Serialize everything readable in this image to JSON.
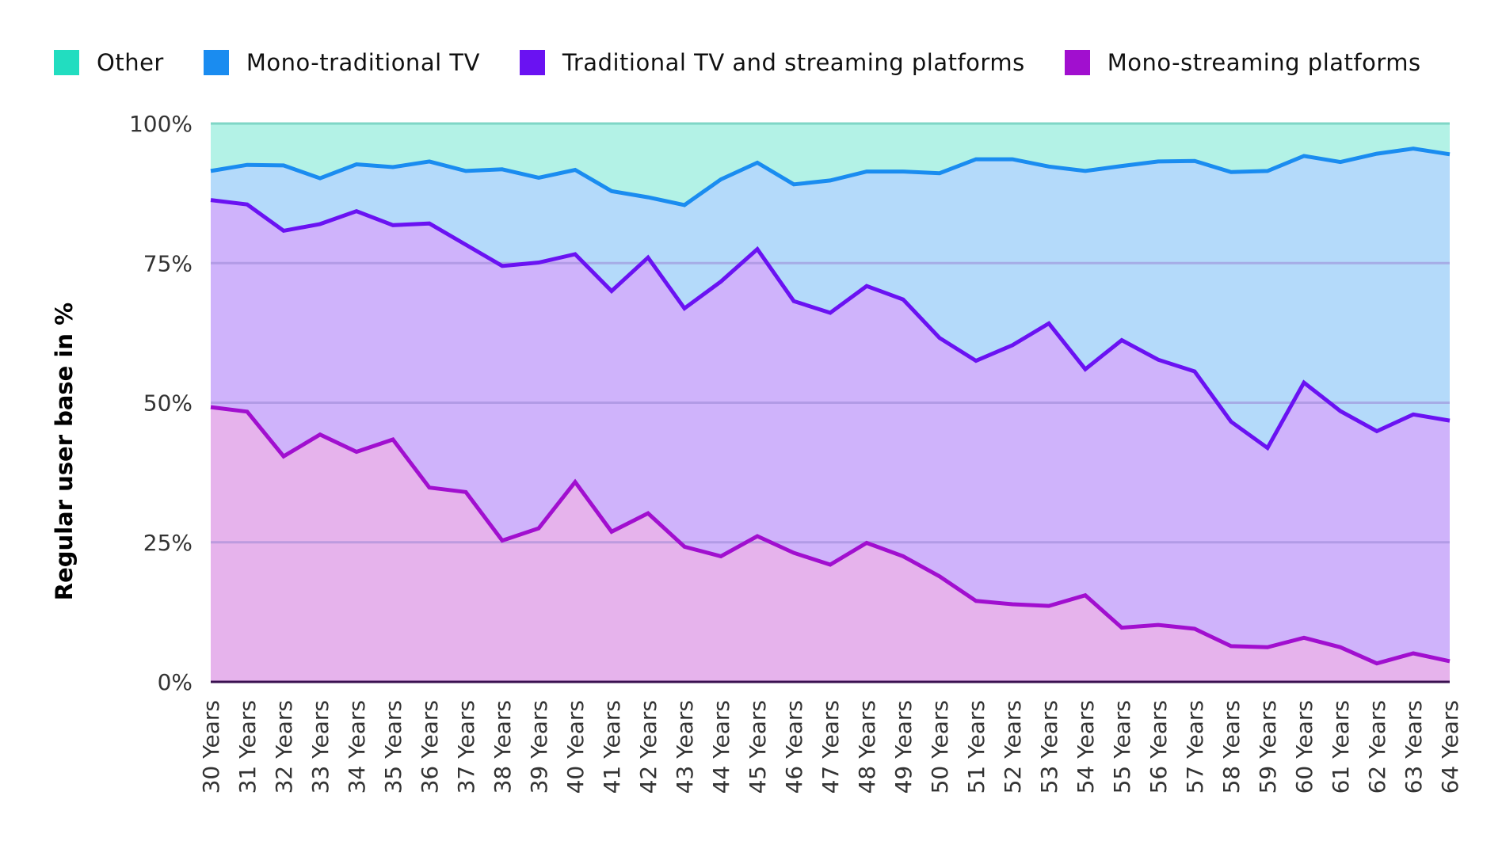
{
  "chart_data": {
    "type": "area",
    "stacked": true,
    "title": "",
    "xlabel": "",
    "ylabel": "Regular user base in %",
    "ylim": [
      0,
      100
    ],
    "yticks": [
      "0%",
      "25%",
      "50%",
      "75%",
      "100%"
    ],
    "ytick_values": [
      0,
      25,
      50,
      75,
      100
    ],
    "grid": true,
    "legend_position": "top",
    "categories": [
      "30 Years",
      "31 Years",
      "32 Years",
      "33 Years",
      "34 Years",
      "35 Years",
      "36 Years",
      "37 Years",
      "38 Years",
      "39 Years",
      "40 Years",
      "41 Years",
      "42 Years",
      "43 Years",
      "44 Years",
      "45 Years",
      "46 Years",
      "47 Years",
      "48 Years",
      "49 Years",
      "50 Years",
      "51 Years",
      "52 Years",
      "53 Years",
      "54 Years",
      "55 Years",
      "56 Years",
      "57 Years",
      "58 Years",
      "59 Years",
      "60 Years",
      "61 Years",
      "62 Years",
      "63 Years",
      "64 Years"
    ],
    "series": [
      {
        "name": "Other",
        "color": "#22DDC0",
        "fill": "#B3F2E6",
        "cumulative_top": [
          100,
          100,
          100,
          100,
          100,
          100,
          100,
          100,
          100,
          100,
          100,
          100,
          100,
          100,
          100,
          100,
          100,
          100,
          100,
          100,
          100,
          100,
          100,
          100,
          100,
          100,
          100,
          100,
          100,
          100,
          100,
          100,
          100,
          100,
          100
        ]
      },
      {
        "name": "Mono-traditional TV",
        "color": "#1A8CF0",
        "fill": "#B4DAFA",
        "cumulative_top": [
          91.5,
          92.6,
          92.5,
          90.2,
          92.7,
          92.2,
          93.2,
          91.5,
          91.8,
          90.3,
          91.7,
          87.9,
          86.8,
          85.4,
          90.0,
          93.0,
          89.1,
          89.8,
          91.4,
          91.4,
          91.1,
          93.6,
          93.6,
          92.3,
          91.5,
          92.4,
          93.2,
          93.3,
          91.3,
          91.5,
          94.2,
          93.1,
          94.6,
          95.5,
          94.5
        ]
      },
      {
        "name": "Traditional TV and streaming platforms",
        "color": "#6A12F2",
        "fill": "#CFB3FB",
        "cumulative_top": [
          86.3,
          85.5,
          80.8,
          82.0,
          84.3,
          81.8,
          82.1,
          78.3,
          74.5,
          75.1,
          76.6,
          70.0,
          76.0,
          66.9,
          71.7,
          77.5,
          68.2,
          66.1,
          70.9,
          68.5,
          61.6,
          57.5,
          60.3,
          64.2,
          56.0,
          61.2,
          57.7,
          55.6,
          46.6,
          41.9,
          53.6,
          48.5,
          44.9,
          47.9,
          46.8
        ]
      },
      {
        "name": "Mono-streaming platforms",
        "color": "#A10FCF",
        "fill": "#E6B3EC",
        "cumulative_top": [
          49.2,
          48.4,
          40.4,
          44.3,
          41.2,
          43.4,
          34.8,
          34.0,
          25.3,
          27.5,
          35.8,
          26.9,
          30.2,
          24.2,
          22.5,
          26.1,
          23.1,
          21.0,
          24.9,
          22.5,
          18.9,
          14.5,
          13.9,
          13.6,
          15.5,
          9.7,
          10.2,
          9.5,
          6.4,
          6.2,
          7.9,
          6.2,
          3.3,
          5.1,
          3.7
        ]
      }
    ]
  }
}
